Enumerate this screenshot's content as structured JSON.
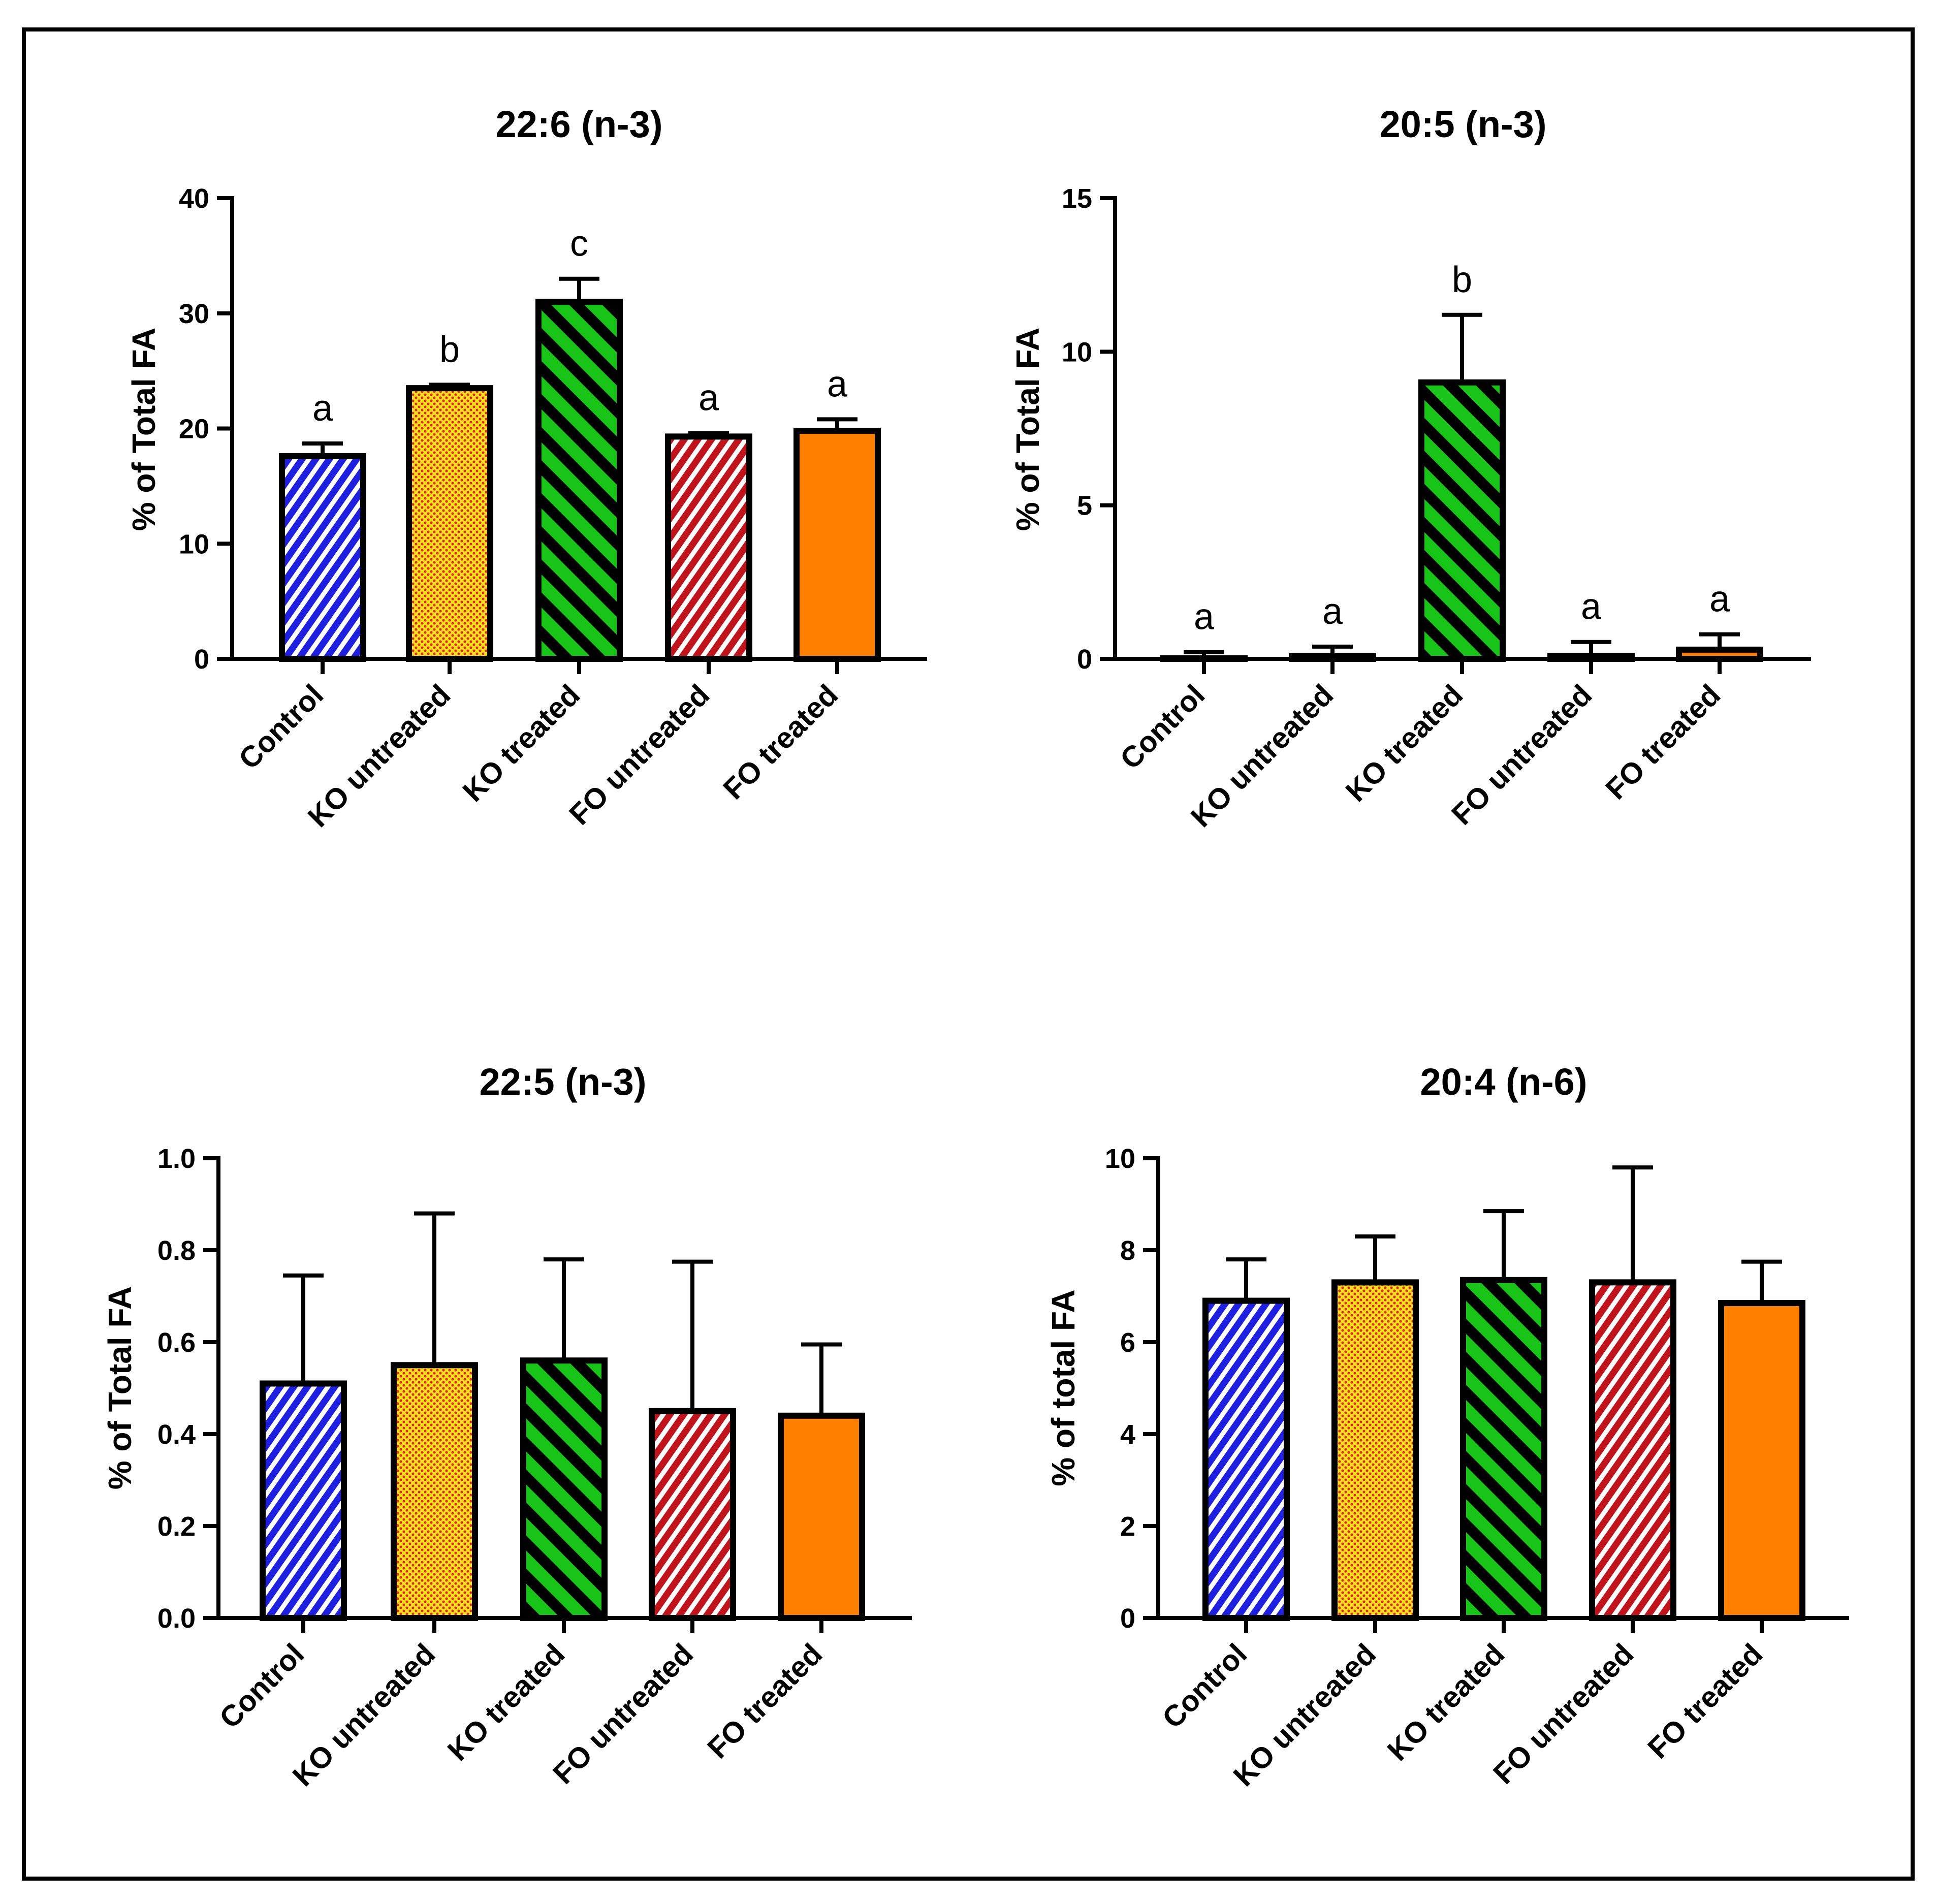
{
  "colors": {
    "blue": "#1f1fe0",
    "yellow": "#f5e11e",
    "yellow_dots": "#e0291f",
    "green": "#17c417",
    "red": "#c0141c",
    "orange": "#ff8000",
    "stroke": "#000000"
  },
  "chart_data": [
    {
      "type": "bar",
      "title": "22:6 (n-3)",
      "xlabel": "",
      "ylabel": "% of Total FA",
      "ylim": [
        0,
        40
      ],
      "yticks": [
        0,
        10,
        20,
        30,
        40
      ],
      "ytick_labels": [
        "0",
        "10",
        "20",
        "30",
        "40"
      ],
      "categories": [
        "Control",
        "KO untreated",
        "KO treated",
        "FO untreated",
        "FO treated"
      ],
      "values": [
        17.6,
        23.5,
        31.0,
        19.3,
        19.8
      ],
      "errors": [
        1.1,
        0.3,
        2.0,
        0.3,
        1.0
      ],
      "significance": [
        "a",
        "b",
        "c",
        "a",
        "a"
      ],
      "patterns": [
        "blue-stripes",
        "yellow-dots",
        "green-stripes",
        "red-stripes",
        "orange-solid"
      ]
    },
    {
      "type": "bar",
      "title": "20:5 (n-3)",
      "xlabel": "",
      "ylabel": "% of Total FA",
      "ylim": [
        0,
        15
      ],
      "yticks": [
        0,
        5,
        10,
        15
      ],
      "ytick_labels": [
        "0",
        "5",
        "10",
        "15"
      ],
      "categories": [
        "Control",
        "KO untreated",
        "KO treated",
        "FO untreated",
        "FO treated"
      ],
      "values": [
        0.02,
        0.1,
        9.0,
        0.1,
        0.3
      ],
      "errors": [
        0.2,
        0.3,
        2.2,
        0.45,
        0.5
      ],
      "significance": [
        "a",
        "a",
        "b",
        "a",
        "a"
      ],
      "patterns": [
        "blue-stripes",
        "yellow-dots",
        "green-stripes",
        "red-stripes",
        "orange-solid"
      ]
    },
    {
      "type": "bar",
      "title": "22:5 (n-3)",
      "xlabel": "",
      "ylabel": "% of Total FA",
      "ylim": [
        0,
        1.0
      ],
      "yticks": [
        0,
        0.2,
        0.4,
        0.6,
        0.8,
        1.0
      ],
      "ytick_labels": [
        "0.0",
        "0.2",
        "0.4",
        "0.6",
        "0.8",
        "1.0"
      ],
      "categories": [
        "Control",
        "KO untreated",
        "KO treated",
        "FO untreated",
        "FO treated"
      ],
      "values": [
        0.51,
        0.55,
        0.56,
        0.45,
        0.44
      ],
      "errors": [
        0.235,
        0.33,
        0.22,
        0.325,
        0.155
      ],
      "significance": [
        "",
        "",
        "",
        "",
        ""
      ],
      "patterns": [
        "blue-stripes",
        "yellow-dots",
        "green-stripes",
        "red-stripes",
        "orange-solid"
      ]
    },
    {
      "type": "bar",
      "title": "20:4 (n-6)",
      "xlabel": "",
      "ylabel": "% of total FA",
      "ylim": [
        0,
        10
      ],
      "yticks": [
        0,
        2,
        4,
        6,
        8,
        10
      ],
      "ytick_labels": [
        "0",
        "2",
        "4",
        "6",
        "8",
        "10"
      ],
      "categories": [
        "Control",
        "KO untreated",
        "KO treated",
        "FO untreated",
        "FO treated"
      ],
      "values": [
        6.9,
        7.3,
        7.35,
        7.3,
        6.85
      ],
      "errors": [
        0.9,
        1.0,
        1.5,
        2.5,
        0.9
      ],
      "significance": [
        "",
        "",
        "",
        "",
        ""
      ],
      "patterns": [
        "blue-stripes",
        "yellow-dots",
        "green-stripes",
        "red-stripes",
        "orange-solid"
      ]
    }
  ]
}
